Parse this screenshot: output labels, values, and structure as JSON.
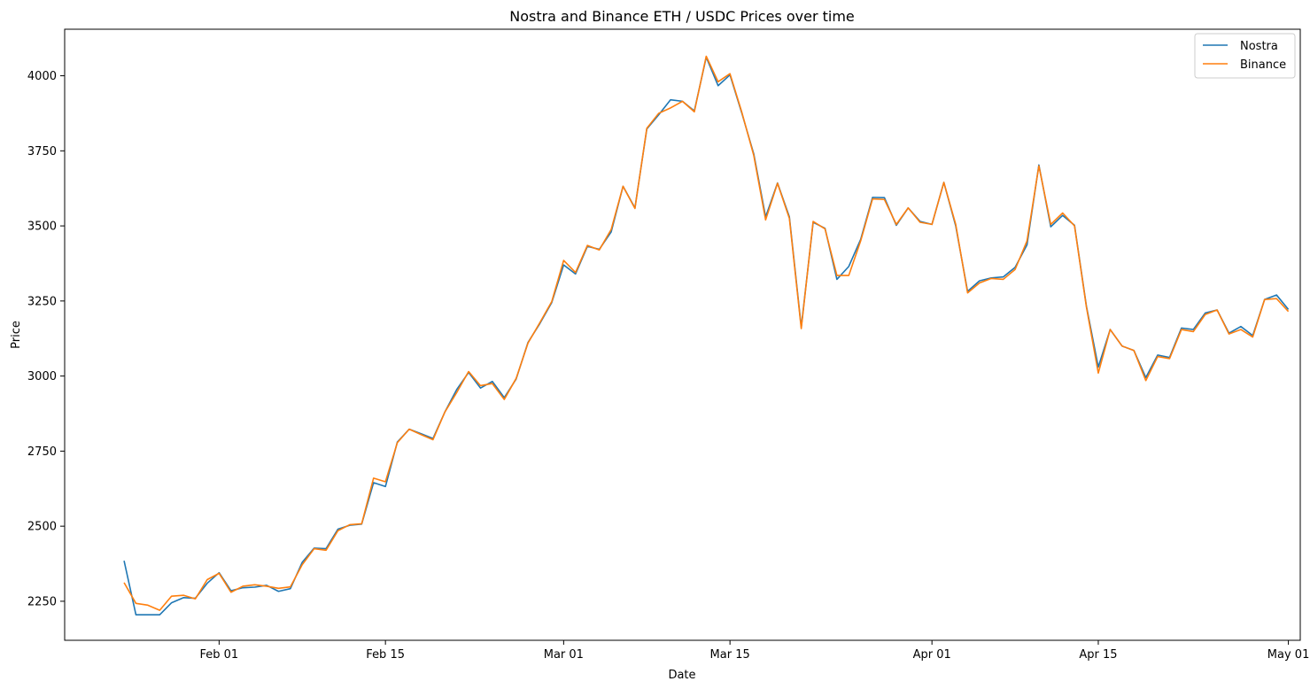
{
  "chart_data": {
    "type": "line",
    "title": "Nostra and Binance ETH / USDC Prices over time",
    "xlabel": "Date",
    "ylabel": "Price",
    "x_start": "2024-01-24",
    "x_range": [
      "2024-01-19",
      "2024-05-02"
    ],
    "ylim": [
      2120,
      4155
    ],
    "xticks": [
      {
        "date": "2024-02-01",
        "label": "Feb 01"
      },
      {
        "date": "2024-02-15",
        "label": "Feb 15"
      },
      {
        "date": "2024-03-01",
        "label": "Mar 01"
      },
      {
        "date": "2024-03-15",
        "label": "Mar 15"
      },
      {
        "date": "2024-04-01",
        "label": "Apr 01"
      },
      {
        "date": "2024-04-15",
        "label": "Apr 15"
      },
      {
        "date": "2024-05-01",
        "label": "May 01"
      }
    ],
    "yticks": [
      2250,
      2500,
      2750,
      3000,
      3250,
      3500,
      3750,
      4000
    ],
    "grid": false,
    "legend": "top-right",
    "series": [
      {
        "name": "Nostra",
        "color": "#1f77b4",
        "values": [
          2385,
          2205,
          2205,
          2205,
          2245,
          2262,
          2260,
          2310,
          2345,
          2285,
          2295,
          2297,
          2303,
          2283,
          2292,
          2380,
          2427,
          2425,
          2490,
          2503,
          2507,
          2645,
          2632,
          2780,
          2823,
          2808,
          2792,
          2880,
          2955,
          3012,
          2960,
          2982,
          2928,
          2990,
          3112,
          3175,
          3245,
          3370,
          3340,
          3432,
          3422,
          3480,
          3632,
          3560,
          3823,
          3870,
          3920,
          3915,
          3883,
          4062,
          3967,
          4003,
          3875,
          3740,
          3530,
          3643,
          3530,
          3163,
          3512,
          3492,
          3322,
          3365,
          3455,
          3595,
          3594,
          3502,
          3560,
          3515,
          3505,
          3645,
          3500,
          3282,
          3317,
          3327,
          3330,
          3362,
          3437,
          3703,
          3497,
          3535,
          3502,
          3233,
          3030,
          3155,
          3100,
          3085,
          2995,
          3070,
          3062,
          3160,
          3155,
          3210,
          3220,
          3143,
          3165,
          3135,
          3255,
          3270,
          3222
        ]
      },
      {
        "name": "Binance",
        "color": "#ff7f0e",
        "values": [
          2312,
          2243,
          2237,
          2220,
          2267,
          2270,
          2258,
          2322,
          2343,
          2280,
          2300,
          2305,
          2300,
          2293,
          2298,
          2372,
          2425,
          2420,
          2485,
          2505,
          2508,
          2660,
          2648,
          2778,
          2823,
          2805,
          2788,
          2880,
          2945,
          3015,
          2968,
          2975,
          2922,
          2992,
          3110,
          3178,
          3248,
          3385,
          3345,
          3435,
          3420,
          3488,
          3632,
          3558,
          3825,
          3875,
          3893,
          3915,
          3880,
          4065,
          3980,
          4007,
          3878,
          3735,
          3520,
          3642,
          3525,
          3158,
          3515,
          3490,
          3335,
          3335,
          3450,
          3590,
          3588,
          3505,
          3560,
          3512,
          3505,
          3645,
          3505,
          3277,
          3310,
          3325,
          3322,
          3355,
          3450,
          3700,
          3505,
          3543,
          3500,
          3230,
          3010,
          3155,
          3100,
          3085,
          2985,
          3065,
          3058,
          3155,
          3148,
          3205,
          3220,
          3140,
          3155,
          3130,
          3255,
          3258,
          3215
        ]
      }
    ]
  }
}
